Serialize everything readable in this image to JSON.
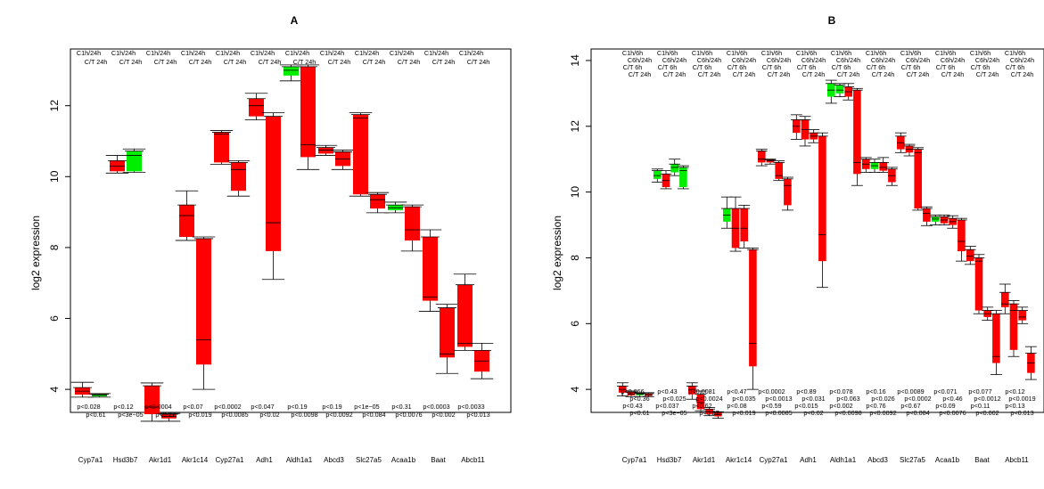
{
  "chart_data": [
    {
      "type": "box",
      "title": "A",
      "ylabel": "log2 expression",
      "ylim": [
        3.35,
        13.6
      ],
      "yticks": [
        4,
        6,
        8,
        10,
        12
      ],
      "colors": {
        "up": "#00ee00",
        "down": "#ff0000"
      },
      "genes": [
        "Cyp7a1",
        "Hsd3b7",
        "Akr1d1",
        "Akr1c14",
        "Cyp27a1",
        "Adh1",
        "Aldh1a1",
        "Abcd3",
        "Slc27a5",
        "Acaa1b",
        "Baat",
        "Abcb11"
      ],
      "gene_labels": [
        "Cyp7a1",
        "Hsd3b7",
        "Akr1d1",
        "Akr1c14",
        "Cyp27a1",
        "Adh1",
        "Aldh1a1",
        "Abcd3",
        "Slc27a5",
        "Acaa1b",
        "Baat",
        "Abcb11"
      ],
      "header_rows": [
        [
          "C1h/24h",
          "C1h/24h",
          "C1h/24h",
          "C1h/24h",
          "C1h/24h",
          "C1h/24h",
          "C1h/24h",
          "C1h/24h",
          "C1h/24h",
          "C1h/24h",
          "C1h/24h",
          "C1h/24h"
        ],
        [
          "C/T 24h",
          "C/T 24h",
          "C/T 24h",
          "C/T 24h",
          "C/T 24h",
          "C/T 24h",
          "C/T 24h",
          "C/T 24h",
          "C/T 24h",
          "C/T 24h",
          "C/T 24h",
          "C/T 24h"
        ]
      ],
      "pvalue_rows": [
        [
          "p<0.028",
          "p<0.12",
          "p<0.0004",
          "p<0.07",
          "p<0.0002",
          "p<0.047",
          "p<0.19",
          "p<0.19",
          "p<1e−05",
          "p<0.31",
          "p<0.0003",
          "p<0.0033"
        ],
        [
          "p<0.61",
          "p<3e−05",
          "p<0.27",
          "p<0.019",
          "p<0.0085",
          "p<0.02",
          "p<0.0098",
          "p<0.0092",
          "p<0.084",
          "p<0.0076",
          "p<0.002",
          "p<0.013"
        ]
      ],
      "boxes": [
        [
          {
            "lo": 3.85,
            "hi": 4.05,
            "mid": 3.95,
            "wlo": 3.78,
            "whi": 4.2,
            "c": "down"
          },
          {
            "lo": 3.8,
            "hi": 3.86,
            "mid": 3.83,
            "wlo": 3.78,
            "whi": 3.88,
            "c": "up"
          }
        ],
        [
          {
            "lo": 10.15,
            "hi": 10.45,
            "mid": 10.3,
            "wlo": 10.1,
            "whi": 10.6,
            "c": "down"
          },
          {
            "lo": 10.15,
            "hi": 10.72,
            "mid": 10.6,
            "wlo": 10.12,
            "whi": 10.78,
            "c": "up"
          }
        ],
        [
          {
            "lo": 3.3,
            "hi": 4.1,
            "mid": 3.5,
            "wlo": 3.1,
            "whi": 4.18,
            "c": "down"
          },
          {
            "lo": 3.18,
            "hi": 3.3,
            "mid": 3.24,
            "wlo": 3.1,
            "whi": 3.32,
            "c": "down"
          }
        ],
        [
          {
            "lo": 8.3,
            "hi": 9.2,
            "mid": 8.9,
            "wlo": 8.2,
            "whi": 9.6,
            "c": "down"
          },
          {
            "lo": 4.7,
            "hi": 8.25,
            "mid": 5.4,
            "wlo": 4.0,
            "whi": 8.3,
            "c": "down"
          }
        ],
        [
          {
            "lo": 10.4,
            "hi": 11.25,
            "mid": 11.2,
            "wlo": 10.35,
            "whi": 11.3,
            "c": "down"
          },
          {
            "lo": 9.6,
            "hi": 10.4,
            "mid": 10.2,
            "wlo": 9.45,
            "whi": 10.45,
            "c": "down"
          }
        ],
        [
          {
            "lo": 11.7,
            "hi": 12.2,
            "mid": 12.0,
            "wlo": 11.6,
            "whi": 12.35,
            "c": "down"
          },
          {
            "lo": 7.9,
            "hi": 11.7,
            "mid": 8.7,
            "wlo": 7.1,
            "whi": 11.8,
            "c": "down"
          }
        ],
        [
          {
            "lo": 12.85,
            "hi": 13.1,
            "mid": 13.0,
            "wlo": 12.7,
            "whi": 13.15,
            "c": "up"
          },
          {
            "lo": 10.55,
            "hi": 13.1,
            "mid": 10.9,
            "wlo": 10.2,
            "whi": 13.15,
            "c": "down"
          }
        ],
        [
          {
            "lo": 10.65,
            "hi": 10.82,
            "mid": 10.75,
            "wlo": 10.6,
            "whi": 10.88,
            "c": "down"
          },
          {
            "lo": 10.3,
            "hi": 10.7,
            "mid": 10.5,
            "wlo": 10.2,
            "whi": 10.75,
            "c": "down"
          }
        ],
        [
          {
            "lo": 9.5,
            "hi": 11.75,
            "mid": 11.65,
            "wlo": 9.45,
            "whi": 11.8,
            "c": "down"
          },
          {
            "lo": 9.1,
            "hi": 9.5,
            "mid": 9.35,
            "wlo": 8.98,
            "whi": 9.55,
            "c": "down"
          }
        ],
        [
          {
            "lo": 9.05,
            "hi": 9.2,
            "mid": 9.12,
            "wlo": 8.98,
            "whi": 9.28,
            "c": "up"
          },
          {
            "lo": 8.2,
            "hi": 9.15,
            "mid": 8.5,
            "wlo": 7.9,
            "whi": 9.2,
            "c": "down"
          }
        ],
        [
          {
            "lo": 6.5,
            "hi": 8.3,
            "mid": 6.6,
            "wlo": 6.2,
            "whi": 8.5,
            "c": "down"
          },
          {
            "lo": 4.9,
            "hi": 6.3,
            "mid": 5.0,
            "wlo": 4.45,
            "whi": 6.4,
            "c": "down"
          }
        ],
        [
          {
            "lo": 5.2,
            "hi": 6.95,
            "mid": 5.3,
            "wlo": 5.1,
            "whi": 7.25,
            "c": "down"
          },
          {
            "lo": 4.5,
            "hi": 5.1,
            "mid": 4.8,
            "wlo": 4.3,
            "whi": 5.3,
            "c": "down"
          }
        ]
      ]
    },
    {
      "type": "box",
      "title": "B",
      "ylabel": "log2 expression",
      "ylim": [
        3.3,
        14.35
      ],
      "yticks": [
        4,
        6,
        8,
        10,
        12,
        14
      ],
      "colors": {
        "up": "#00ee00",
        "down": "#ff0000"
      },
      "genes": [
        "Cyp7a1",
        "Hsd3b7",
        "Akr1d1",
        "Akr1c14",
        "Cyp27a1",
        "Adh1",
        "Aldh1a1",
        "Abcd3",
        "Slc27a5",
        "Acaa1b",
        "Baat",
        "Abcb11"
      ],
      "gene_labels": [
        "Cyp7a1",
        "Hsd3b7",
        "Akr1d1",
        "Akr1c14",
        "Cyp27a1",
        "Adh1",
        "Aldh1a1",
        "Abcd3",
        "Slc27a5",
        "Acaa1b",
        "Baat",
        "Abcb11"
      ],
      "header_rows": [
        [
          "C1h/6h",
          "C1h/6h",
          "C1h/6h",
          "C1h/6h",
          "C1h/6h",
          "C1h/6h",
          "C1h/6h",
          "C1h/6h",
          "C1h/6h",
          "C1h/6h",
          "C1h/6h",
          "C1h/6h"
        ],
        [
          "C6h/24h",
          "C6h/24h",
          "C6h/24h",
          "C6h/24h",
          "C6h/24h",
          "C6h/24h",
          "C6h/24h",
          "C6h/24h",
          "C6h/24h",
          "C6h/24h",
          "C6h/24h",
          "C6h/24h"
        ],
        [
          "C/T 6h",
          "C/T 6h",
          "C/T 6h",
          "C/T 6h",
          "C/T 6h",
          "C/T 6h",
          "C/T 6h",
          "C/T 6h",
          "C/T 6h",
          "C/T 6h",
          "C/T 6h",
          "C/T 6h"
        ],
        [
          "C/T 24h",
          "C/T 24h",
          "C/T 24h",
          "C/T 24h",
          "C/T 24h",
          "C/T 24h",
          "C/T 24h",
          "C/T 24h",
          "C/T 24h",
          "C/T 24h",
          "C/T 24h",
          "C/T 24h"
        ]
      ],
      "pvalue_rows": [
        [
          "p<0.066",
          "p<0.43",
          "p<0.0081",
          "p<0.47",
          "p<0.0002",
          "p<0.89",
          "p<0.078",
          "p<0.16",
          "p<0.0089",
          "p<0.071",
          "p<0.077",
          "p<0.12"
        ],
        [
          "p<0.36",
          "p<0.025",
          "p<0.0024",
          "p<0.035",
          "p<0.0013",
          "p<0.031",
          "p<0.063",
          "p<0.026",
          "p<0.0002",
          "p<0.46",
          "p<0.0012",
          "p<0.0019"
        ],
        [
          "p<0.43",
          "p<0.037",
          "p<0.62",
          "p<0.08",
          "p<0.59",
          "p<0.015",
          "p<0.002",
          "p<0.76",
          "p<0.67",
          "p<0.09",
          "p<0.11",
          "p<0.13"
        ],
        [
          "p<0.61",
          "p<3e−05",
          "p<0.27",
          "p<0.019",
          "p<0.0085",
          "p<0.02",
          "p<0.0098",
          "p<0.0092",
          "p<0.084",
          "p<0.0076",
          "p<0.002",
          "p<0.013"
        ]
      ],
      "boxes": [
        [
          {
            "lo": 3.9,
            "hi": 4.1,
            "mid": 4.0,
            "wlo": 3.8,
            "whi": 4.2,
            "c": "down"
          },
          {
            "lo": 3.82,
            "hi": 3.92,
            "mid": 3.86,
            "wlo": 3.78,
            "whi": 3.95,
            "c": "down"
          },
          {
            "lo": 3.82,
            "hi": 3.88,
            "mid": 3.85,
            "wlo": 3.78,
            "whi": 3.9,
            "c": "up"
          },
          {
            "lo": 3.8,
            "hi": 3.87,
            "mid": 3.83,
            "wlo": 3.78,
            "whi": 3.9,
            "c": "down"
          }
        ],
        [
          {
            "lo": 10.4,
            "hi": 10.65,
            "mid": 10.5,
            "wlo": 10.3,
            "whi": 10.7,
            "c": "green"
          },
          {
            "lo": 10.15,
            "hi": 10.55,
            "mid": 10.35,
            "wlo": 10.1,
            "whi": 10.65,
            "c": "down"
          },
          {
            "lo": 10.6,
            "hi": 10.85,
            "mid": 10.75,
            "wlo": 10.5,
            "whi": 11.0,
            "c": "up"
          },
          {
            "lo": 10.15,
            "hi": 10.75,
            "mid": 10.65,
            "wlo": 10.1,
            "whi": 10.8,
            "c": "up"
          }
        ],
        [
          {
            "lo": 3.85,
            "hi": 4.1,
            "mid": 4.0,
            "wlo": 3.7,
            "whi": 4.2,
            "c": "down"
          },
          {
            "lo": 3.4,
            "hi": 3.85,
            "mid": 3.6,
            "wlo": 3.35,
            "whi": 3.95,
            "c": "down"
          },
          {
            "lo": 3.25,
            "hi": 3.4,
            "mid": 3.32,
            "wlo": 3.2,
            "whi": 3.45,
            "c": "down"
          },
          {
            "lo": 3.18,
            "hi": 3.3,
            "mid": 3.24,
            "wlo": 3.12,
            "whi": 3.32,
            "c": "down"
          }
        ],
        [
          {
            "lo": 9.1,
            "hi": 9.5,
            "mid": 9.3,
            "wlo": 8.9,
            "whi": 9.85,
            "c": "up"
          },
          {
            "lo": 8.3,
            "hi": 9.5,
            "mid": 8.9,
            "wlo": 8.2,
            "whi": 9.85,
            "c": "down"
          },
          {
            "lo": 8.5,
            "hi": 9.5,
            "mid": 8.9,
            "wlo": 8.3,
            "whi": 9.6,
            "c": "down"
          },
          {
            "lo": 4.7,
            "hi": 8.25,
            "mid": 5.4,
            "wlo": 4.0,
            "whi": 8.3,
            "c": "down"
          }
        ],
        [
          {
            "lo": 10.9,
            "hi": 11.25,
            "mid": 11.0,
            "wlo": 10.8,
            "whi": 11.3,
            "c": "down"
          },
          {
            "lo": 10.9,
            "hi": 10.98,
            "mid": 10.95,
            "wlo": 10.85,
            "whi": 11.0,
            "c": "down"
          },
          {
            "lo": 10.4,
            "hi": 10.9,
            "mid": 10.5,
            "wlo": 10.35,
            "whi": 10.95,
            "c": "down"
          },
          {
            "lo": 9.6,
            "hi": 10.4,
            "mid": 10.2,
            "wlo": 9.45,
            "whi": 10.45,
            "c": "down"
          }
        ],
        [
          {
            "lo": 11.8,
            "hi": 12.2,
            "mid": 12.0,
            "wlo": 11.6,
            "whi": 12.35,
            "c": "down"
          },
          {
            "lo": 11.6,
            "hi": 12.2,
            "mid": 11.9,
            "wlo": 11.4,
            "whi": 12.3,
            "c": "down"
          },
          {
            "lo": 11.6,
            "hi": 11.8,
            "mid": 11.7,
            "wlo": 11.5,
            "whi": 11.9,
            "c": "down"
          },
          {
            "lo": 7.9,
            "hi": 11.7,
            "mid": 8.7,
            "wlo": 7.1,
            "whi": 11.8,
            "c": "down"
          }
        ],
        [
          {
            "lo": 12.9,
            "hi": 13.3,
            "mid": 13.1,
            "wlo": 12.7,
            "whi": 13.4,
            "c": "up"
          },
          {
            "lo": 13.0,
            "hi": 13.25,
            "mid": 13.1,
            "wlo": 12.9,
            "whi": 13.3,
            "c": "green"
          },
          {
            "lo": 12.9,
            "hi": 13.2,
            "mid": 13.05,
            "wlo": 12.8,
            "whi": 13.3,
            "c": "down"
          },
          {
            "lo": 10.55,
            "hi": 13.1,
            "mid": 10.9,
            "wlo": 10.2,
            "whi": 13.15,
            "c": "down"
          }
        ],
        [
          {
            "lo": 10.7,
            "hi": 11.0,
            "mid": 10.85,
            "wlo": 10.6,
            "whi": 11.05,
            "c": "down"
          },
          {
            "lo": 10.7,
            "hi": 10.9,
            "mid": 10.8,
            "wlo": 10.6,
            "whi": 11.0,
            "c": "up"
          },
          {
            "lo": 10.65,
            "hi": 10.9,
            "mid": 10.75,
            "wlo": 10.6,
            "whi": 11.05,
            "c": "down"
          },
          {
            "lo": 10.3,
            "hi": 10.7,
            "mid": 10.5,
            "wlo": 10.2,
            "whi": 10.75,
            "c": "down"
          }
        ],
        [
          {
            "lo": 11.3,
            "hi": 11.7,
            "mid": 11.5,
            "wlo": 11.2,
            "whi": 11.8,
            "c": "down"
          },
          {
            "lo": 11.2,
            "hi": 11.4,
            "mid": 11.3,
            "wlo": 11.1,
            "whi": 11.45,
            "c": "down"
          },
          {
            "lo": 9.5,
            "hi": 11.3,
            "mid": 11.2,
            "wlo": 9.45,
            "whi": 11.35,
            "c": "down"
          },
          {
            "lo": 9.1,
            "hi": 9.5,
            "mid": 9.35,
            "wlo": 8.98,
            "whi": 9.55,
            "c": "down"
          }
        ],
        [
          {
            "lo": 9.1,
            "hi": 9.25,
            "mid": 9.18,
            "wlo": 9.0,
            "whi": 9.3,
            "c": "up"
          },
          {
            "lo": 9.05,
            "hi": 9.25,
            "mid": 9.15,
            "wlo": 9.0,
            "whi": 9.3,
            "c": "down"
          },
          {
            "lo": 9.0,
            "hi": 9.2,
            "mid": 9.1,
            "wlo": 8.9,
            "whi": 9.28,
            "c": "down"
          },
          {
            "lo": 8.2,
            "hi": 9.15,
            "mid": 8.5,
            "wlo": 7.9,
            "whi": 9.2,
            "c": "down"
          }
        ],
        [
          {
            "lo": 7.9,
            "hi": 8.25,
            "mid": 8.05,
            "wlo": 7.8,
            "whi": 8.35,
            "c": "down"
          },
          {
            "lo": 6.4,
            "hi": 8.0,
            "mid": 7.9,
            "wlo": 6.3,
            "whi": 8.1,
            "c": "down"
          },
          {
            "lo": 6.2,
            "hi": 6.4,
            "mid": 6.3,
            "wlo": 6.1,
            "whi": 6.5,
            "c": "down"
          },
          {
            "lo": 4.8,
            "hi": 6.3,
            "mid": 5.0,
            "wlo": 4.45,
            "whi": 6.4,
            "c": "down"
          }
        ],
        [
          {
            "lo": 6.5,
            "hi": 6.95,
            "mid": 6.6,
            "wlo": 6.3,
            "whi": 7.2,
            "c": "down"
          },
          {
            "lo": 5.2,
            "hi": 6.6,
            "mid": 6.4,
            "wlo": 5.0,
            "whi": 6.7,
            "c": "down"
          },
          {
            "lo": 6.1,
            "hi": 6.4,
            "mid": 6.2,
            "wlo": 6.0,
            "whi": 6.5,
            "c": "down"
          },
          {
            "lo": 4.5,
            "hi": 5.1,
            "mid": 4.8,
            "wlo": 4.3,
            "whi": 5.3,
            "c": "down"
          }
        ]
      ]
    }
  ]
}
